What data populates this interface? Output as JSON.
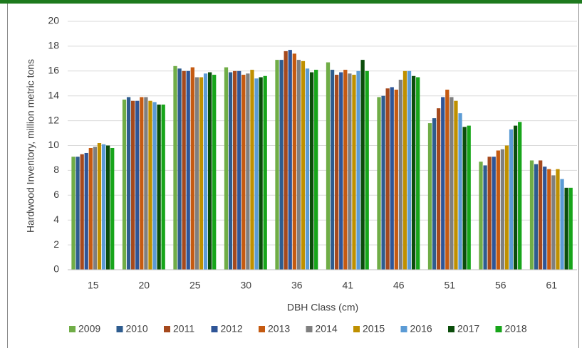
{
  "chart_data": {
    "type": "bar",
    "ylabel": "Hardwood Inventory, million metric tons",
    "xlabel": "DBH Class (cm)",
    "categories": [
      "15",
      "20",
      "25",
      "30",
      "36",
      "41",
      "46",
      "51",
      "56",
      "61"
    ],
    "series": [
      {
        "name": "2009",
        "color": "#70ad47",
        "values": [
          9.1,
          13.7,
          16.4,
          16.3,
          16.9,
          16.7,
          13.9,
          11.8,
          8.7,
          8.8
        ]
      },
      {
        "name": "2010",
        "color": "#2e5c8f",
        "values": [
          9.1,
          13.9,
          16.2,
          15.9,
          16.9,
          16.1,
          14.0,
          12.2,
          8.4,
          8.5
        ]
      },
      {
        "name": "2011",
        "color": "#a5491d",
        "values": [
          9.3,
          13.6,
          16.0,
          16.0,
          17.6,
          15.7,
          14.6,
          13.0,
          9.1,
          8.8
        ]
      },
      {
        "name": "2012",
        "color": "#2f5597",
        "values": [
          9.4,
          13.6,
          16.0,
          16.0,
          17.7,
          15.9,
          14.7,
          13.9,
          9.1,
          8.3
        ]
      },
      {
        "name": "2013",
        "color": "#c55a11",
        "values": [
          9.8,
          13.9,
          16.3,
          15.7,
          17.4,
          16.1,
          14.5,
          14.5,
          9.6,
          8.1
        ]
      },
      {
        "name": "2014",
        "color": "#7f7f7f",
        "values": [
          9.9,
          13.9,
          15.5,
          15.8,
          16.9,
          15.8,
          15.3,
          13.9,
          9.7,
          7.6
        ]
      },
      {
        "name": "2015",
        "color": "#bf9000",
        "values": [
          10.2,
          13.6,
          15.5,
          16.1,
          16.8,
          15.7,
          16.0,
          13.6,
          10.0,
          8.1
        ]
      },
      {
        "name": "2016",
        "color": "#5b9bd5",
        "values": [
          10.1,
          13.5,
          15.8,
          15.4,
          16.2,
          16.0,
          16.0,
          12.6,
          11.3,
          7.3
        ]
      },
      {
        "name": "2017",
        "color": "#0b4d0b",
        "values": [
          10.0,
          13.3,
          15.9,
          15.5,
          15.9,
          16.9,
          15.6,
          11.5,
          11.6,
          6.6
        ]
      },
      {
        "name": "2018",
        "color": "#17a51a",
        "values": [
          9.8,
          13.3,
          15.7,
          15.6,
          16.1,
          16.0,
          15.5,
          11.6,
          11.9,
          6.6
        ]
      }
    ],
    "ylim": [
      0,
      20
    ],
    "yticks": [
      0,
      2,
      4,
      6,
      8,
      10,
      12,
      14,
      16,
      18,
      20
    ],
    "grid": true,
    "legend": "bottom"
  }
}
